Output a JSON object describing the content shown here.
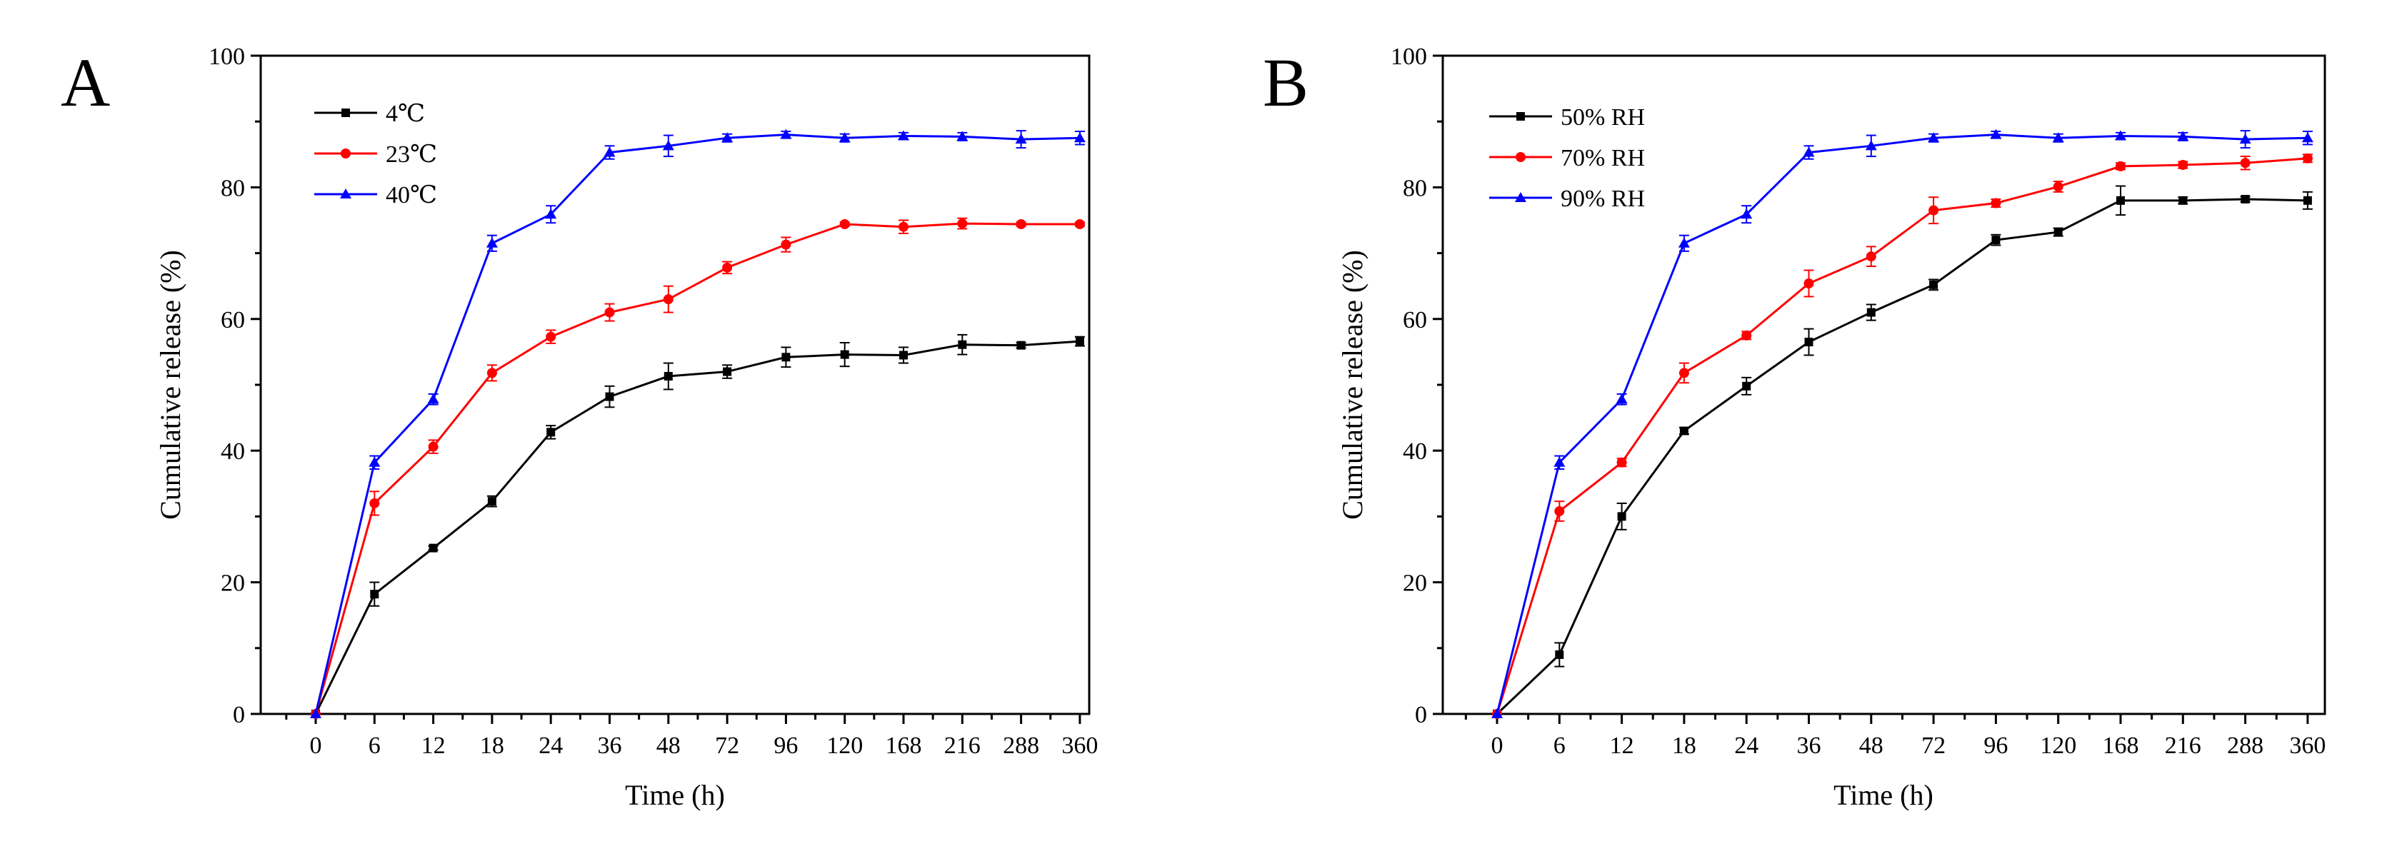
{
  "chart_data": [
    {
      "type": "line",
      "panel_label": "A",
      "title": "",
      "xlabel": "Time (h)",
      "ylabel": "Cumulative release (%)",
      "categories": [
        "0",
        "6",
        "12",
        "18",
        "24",
        "36",
        "48",
        "72",
        "96",
        "120",
        "168",
        "216",
        "288",
        "360"
      ],
      "ylim": [
        0,
        100
      ],
      "yticks": [
        "0",
        "20",
        "40",
        "60",
        "80",
        "100"
      ],
      "grid": false,
      "legend_position": "top-left",
      "series": [
        {
          "name": "4℃",
          "color": "#000000",
          "marker": "square",
          "values": [
            0,
            18.2,
            25.2,
            32.3,
            42.8,
            48.2,
            51.3,
            52.0,
            54.2,
            54.6,
            54.5,
            56.1,
            56.0,
            56.6
          ],
          "errors": [
            0,
            1.8,
            0.3,
            0.8,
            1.0,
            1.6,
            2.0,
            1.0,
            1.5,
            1.8,
            1.2,
            1.5,
            0.4,
            0.7
          ]
        },
        {
          "name": "23℃",
          "color": "#ff0000",
          "marker": "circle",
          "values": [
            0,
            32.0,
            40.6,
            51.8,
            57.3,
            61.0,
            63.0,
            67.8,
            71.3,
            74.4,
            74.0,
            74.5,
            74.4,
            74.4
          ],
          "errors": [
            0,
            1.8,
            1.0,
            1.2,
            1.0,
            1.3,
            2.0,
            0.9,
            1.1,
            0.3,
            1.0,
            0.8,
            0.3,
            0.3
          ]
        },
        {
          "name": "40℃",
          "color": "#0000ff",
          "marker": "triangle",
          "values": [
            0,
            38.2,
            47.8,
            71.5,
            75.9,
            85.3,
            86.3,
            87.5,
            88.0,
            87.5,
            87.8,
            87.7,
            87.3,
            87.5
          ],
          "errors": [
            0,
            1.0,
            0.8,
            1.2,
            1.3,
            1.0,
            1.6,
            0.6,
            0.5,
            0.6,
            0.5,
            0.6,
            1.3,
            1.0
          ]
        }
      ]
    },
    {
      "type": "line",
      "panel_label": "B",
      "title": "",
      "xlabel": "Time (h)",
      "ylabel": "Cumulative release (%)",
      "categories": [
        "0",
        "6",
        "12",
        "18",
        "24",
        "36",
        "48",
        "72",
        "96",
        "120",
        "168",
        "216",
        "288",
        "360"
      ],
      "ylim": [
        0,
        100
      ],
      "yticks": [
        "0",
        "20",
        "40",
        "60",
        "80",
        "100"
      ],
      "grid": false,
      "legend_position": "top-left",
      "series": [
        {
          "name": "50% RH",
          "color": "#000000",
          "marker": "square",
          "values": [
            0,
            9.0,
            30.0,
            43.0,
            49.8,
            56.5,
            61.0,
            65.2,
            72.0,
            73.2,
            78.0,
            78.0,
            78.2,
            78.0
          ],
          "errors": [
            0,
            1.8,
            2.0,
            0.5,
            1.3,
            2.0,
            1.2,
            0.8,
            0.8,
            0.6,
            2.2,
            0.5,
            0.4,
            1.3
          ]
        },
        {
          "name": "70% RH",
          "color": "#ff0000",
          "marker": "circle",
          "values": [
            0,
            30.8,
            38.2,
            51.8,
            57.5,
            65.4,
            69.5,
            76.5,
            77.6,
            80.1,
            83.2,
            83.4,
            83.7,
            84.4
          ],
          "errors": [
            0,
            1.5,
            0.6,
            1.5,
            0.6,
            2.0,
            1.5,
            2.0,
            0.6,
            0.8,
            0.5,
            0.5,
            1.0,
            0.6
          ]
        },
        {
          "name": "90% RH",
          "color": "#0000ff",
          "marker": "triangle",
          "values": [
            0,
            38.2,
            47.8,
            71.5,
            75.9,
            85.3,
            86.3,
            87.5,
            88.0,
            87.5,
            87.8,
            87.7,
            87.3,
            87.5
          ],
          "errors": [
            0,
            1.0,
            0.8,
            1.2,
            1.3,
            1.0,
            1.6,
            0.6,
            0.5,
            0.6,
            0.5,
            0.6,
            1.3,
            1.0
          ]
        }
      ]
    }
  ]
}
